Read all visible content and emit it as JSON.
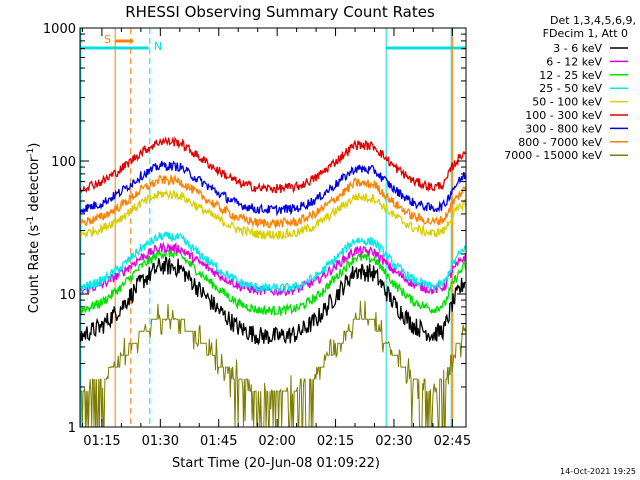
{
  "chart_data": {
    "type": "line",
    "title": "RHESSI Observing Summary Count Rates",
    "xlabel": "Start Time (20-Jun-08 01:09:22)",
    "ylabel_main": "Count Rate (s",
    "ylabel_sup1": "-1",
    "ylabel_mid": " detector",
    "ylabel_sup2": "-1",
    "ylabel_end": ")",
    "footer": "14-Oct-2021 19:25",
    "xlim_minutes": [
      69.37,
      168.5
    ],
    "ylim": [
      1,
      1000
    ],
    "yscale": "log",
    "xticks": [
      {
        "t": 75,
        "label": "01:15"
      },
      {
        "t": 90,
        "label": "01:30"
      },
      {
        "t": 105,
        "label": "01:45"
      },
      {
        "t": 120,
        "label": "02:00"
      },
      {
        "t": 135,
        "label": "02:15"
      },
      {
        "t": 150,
        "label": "02:30"
      },
      {
        "t": 165,
        "label": "02:45"
      }
    ],
    "yticks": [
      {
        "v": 1,
        "label": "1"
      },
      {
        "v": 10,
        "label": "10"
      },
      {
        "v": 100,
        "label": "100"
      },
      {
        "v": 1000,
        "label": "1000"
      }
    ],
    "legend_header": [
      "Det 1,3,4,5,6,9,",
      "FDecim 1, Att 0"
    ],
    "legend_position": "right",
    "markers": {
      "saa": {
        "label": "S",
        "color": "#ff8000"
      },
      "night": {
        "label": "N",
        "color": "#00e0e0"
      },
      "night_bars": [
        [
          69.37,
          87.0
        ],
        [
          148.0,
          168.5
        ]
      ],
      "cyan_solid": [
        69.6,
        148.0,
        164.7
      ],
      "cyan_dashed": [
        87.3
      ],
      "orange_solid": [
        78.4,
        165.0
      ],
      "orange_dashed": [
        82.4
      ]
    },
    "curve_shape": {
      "t": [
        69.4,
        75,
        80,
        85,
        90,
        95,
        100,
        105,
        110,
        115,
        120,
        125,
        130,
        135,
        140,
        145,
        150,
        155,
        160,
        163,
        165,
        168
      ],
      "s": [
        0.0,
        0.14,
        0.4,
        0.74,
        0.97,
        0.94,
        0.64,
        0.36,
        0.12,
        0.01,
        0.0,
        0.03,
        0.22,
        0.55,
        0.9,
        0.86,
        0.45,
        0.15,
        0.02,
        0.1,
        0.45,
        0.75
      ]
    },
    "series": [
      {
        "name": "3 - 6 keV",
        "color": "#000000",
        "low": 4.8,
        "high": 17
      },
      {
        "name": "6 - 12 keV",
        "color": "#e000e0",
        "low": 10.5,
        "high": 23
      },
      {
        "name": "12 - 25 keV",
        "color": "#00e000",
        "low": 7.5,
        "high": 21
      },
      {
        "name": "25 - 50 keV",
        "color": "#00e8e8",
        "low": 11,
        "high": 28
      },
      {
        "name": "50 - 100 keV",
        "color": "#d8d000",
        "low": 28,
        "high": 58
      },
      {
        "name": "100 - 300 keV",
        "color": "#e00000",
        "low": 62,
        "high": 145
      },
      {
        "name": "300 - 800 keV",
        "color": "#0000e0",
        "low": 43,
        "high": 95
      },
      {
        "name": "800 - 7000 keV",
        "color": "#ff8000",
        "low": 34,
        "high": 74
      },
      {
        "name": "7000 - 15000 keV",
        "color": "#7d7d00",
        "low": 1.9,
        "high": 7.0
      }
    ]
  }
}
